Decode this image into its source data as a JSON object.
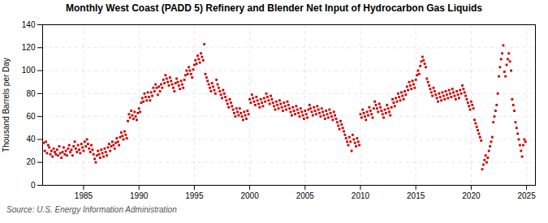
{
  "chart_data": {
    "type": "scatter",
    "title": "Monthly West Coast (PADD 5) Refinery and Blender Net Input of Hydrocarbon Gas Liquids",
    "ylabel": "Thousand Barrels per Day",
    "source": "Source: U.S. Energy Information Administration",
    "color": "#cc0000",
    "marker": "square",
    "grid": true,
    "xlim": [
      1981.3,
      2025.8
    ],
    "xticks": [
      1985,
      1990,
      1995,
      2000,
      2005,
      2010,
      2015,
      2020,
      2025
    ],
    "ylim": [
      0,
      140
    ],
    "yticks": [
      0,
      20,
      40,
      60,
      80,
      100,
      120,
      140
    ],
    "x": [
      1981.4,
      1981.5,
      1981.6,
      1981.7,
      1981.8,
      1981.9,
      1982.0,
      1982.1,
      1982.2,
      1982.3,
      1982.4,
      1982.5,
      1982.6,
      1982.7,
      1982.8,
      1982.9,
      1983.0,
      1983.1,
      1983.2,
      1983.3,
      1983.4,
      1983.5,
      1983.6,
      1983.7,
      1983.8,
      1983.9,
      1984.0,
      1984.1,
      1984.2,
      1984.3,
      1984.4,
      1984.5,
      1984.6,
      1984.7,
      1984.8,
      1984.9,
      1985.0,
      1985.1,
      1985.2,
      1985.3,
      1985.4,
      1985.5,
      1985.6,
      1985.7,
      1985.8,
      1985.9,
      1986.0,
      1986.1,
      1986.2,
      1986.3,
      1986.4,
      1986.5,
      1986.6,
      1986.7,
      1986.8,
      1986.9,
      1987.0,
      1987.1,
      1987.2,
      1987.3,
      1987.4,
      1987.5,
      1987.6,
      1987.7,
      1987.8,
      1987.9,
      1988.0,
      1988.1,
      1988.2,
      1988.3,
      1988.4,
      1988.5,
      1988.6,
      1988.7,
      1988.8,
      1988.9,
      1989.0,
      1989.1,
      1989.2,
      1989.3,
      1989.4,
      1989.5,
      1989.6,
      1989.7,
      1989.8,
      1989.9,
      1990.0,
      1990.1,
      1990.2,
      1990.3,
      1990.4,
      1990.5,
      1990.6,
      1990.7,
      1990.8,
      1990.9,
      1991.0,
      1991.1,
      1991.2,
      1991.3,
      1991.4,
      1991.5,
      1991.6,
      1991.7,
      1991.8,
      1991.9,
      1992.0,
      1992.1,
      1992.2,
      1992.3,
      1992.4,
      1992.5,
      1992.6,
      1992.7,
      1992.8,
      1992.9,
      1993.0,
      1993.1,
      1993.2,
      1993.3,
      1993.4,
      1993.5,
      1993.6,
      1993.7,
      1993.8,
      1993.9,
      1994.0,
      1994.1,
      1994.2,
      1994.3,
      1994.4,
      1994.5,
      1994.6,
      1994.7,
      1994.8,
      1994.9,
      1995.0,
      1995.1,
      1995.2,
      1995.3,
      1995.4,
      1995.5,
      1995.6,
      1995.7,
      1995.8,
      1995.9,
      1996.0,
      1996.1,
      1996.2,
      1996.3,
      1996.4,
      1996.5,
      1996.6,
      1996.7,
      1996.8,
      1996.9,
      1997.0,
      1997.1,
      1997.2,
      1997.3,
      1997.4,
      1997.5,
      1997.6,
      1997.7,
      1997.8,
      1997.9,
      1998.0,
      1998.1,
      1998.2,
      1998.3,
      1998.4,
      1998.5,
      1998.6,
      1998.7,
      1998.8,
      1998.9,
      1999.0,
      1999.1,
      1999.2,
      1999.3,
      1999.4,
      1999.5,
      1999.6,
      1999.7,
      1999.8,
      1999.9,
      2000.0,
      2000.1,
      2000.2,
      2000.3,
      2000.4,
      2000.5,
      2000.6,
      2000.7,
      2000.8,
      2000.9,
      2001.0,
      2001.1,
      2001.2,
      2001.3,
      2001.4,
      2001.5,
      2001.6,
      2001.7,
      2001.8,
      2001.9,
      2002.0,
      2002.1,
      2002.2,
      2002.3,
      2002.4,
      2002.5,
      2002.6,
      2002.7,
      2002.8,
      2002.9,
      2003.0,
      2003.1,
      2003.2,
      2003.3,
      2003.4,
      2003.5,
      2003.6,
      2003.7,
      2003.8,
      2003.9,
      2004.0,
      2004.1,
      2004.2,
      2004.3,
      2004.4,
      2004.5,
      2004.6,
      2004.7,
      2004.8,
      2004.9,
      2005.0,
      2005.1,
      2005.2,
      2005.3,
      2005.4,
      2005.5,
      2005.6,
      2005.7,
      2005.8,
      2005.9,
      2006.0,
      2006.1,
      2006.2,
      2006.3,
      2006.4,
      2006.5,
      2006.6,
      2006.7,
      2006.8,
      2006.9,
      2007.0,
      2007.1,
      2007.2,
      2007.3,
      2007.4,
      2007.5,
      2007.6,
      2007.7,
      2007.8,
      2007.9,
      2008.0,
      2008.1,
      2008.2,
      2008.3,
      2008.4,
      2008.5,
      2008.6,
      2008.7,
      2008.8,
      2008.9,
      2009.0,
      2009.1,
      2009.2,
      2009.3,
      2009.4,
      2009.5,
      2009.6,
      2009.7,
      2009.8,
      2009.9,
      2010.0,
      2010.1,
      2010.2,
      2010.3,
      2010.4,
      2010.5,
      2010.6,
      2010.7,
      2010.8,
      2010.9,
      2011.0,
      2011.1,
      2011.2,
      2011.3,
      2011.4,
      2011.5,
      2011.6,
      2011.7,
      2011.8,
      2011.9,
      2012.0,
      2012.1,
      2012.2,
      2012.3,
      2012.4,
      2012.5,
      2012.6,
      2012.7,
      2012.8,
      2012.9,
      2013.0,
      2013.1,
      2013.2,
      2013.3,
      2013.4,
      2013.5,
      2013.6,
      2013.7,
      2013.8,
      2013.9,
      2014.0,
      2014.1,
      2014.2,
      2014.3,
      2014.4,
      2014.5,
      2014.6,
      2014.7,
      2014.8,
      2014.9,
      2015.0,
      2015.1,
      2015.2,
      2015.3,
      2015.4,
      2015.5,
      2015.6,
      2015.7,
      2015.8,
      2015.9,
      2016.0,
      2016.1,
      2016.2,
      2016.3,
      2016.4,
      2016.5,
      2016.6,
      2016.7,
      2016.8,
      2016.9,
      2017.0,
      2017.1,
      2017.2,
      2017.3,
      2017.4,
      2017.5,
      2017.6,
      2017.7,
      2017.8,
      2017.9,
      2018.0,
      2018.1,
      2018.2,
      2018.3,
      2018.4,
      2018.5,
      2018.6,
      2018.7,
      2018.8,
      2018.9,
      2019.0,
      2019.1,
      2019.2,
      2019.3,
      2019.4,
      2019.5,
      2019.6,
      2019.7,
      2019.8,
      2019.9,
      2020.0,
      2020.1,
      2020.2,
      2020.3,
      2020.4,
      2020.5,
      2020.6,
      2020.7,
      2020.8,
      2020.9,
      2021.0,
      2021.1,
      2021.2,
      2021.3,
      2021.4,
      2021.5,
      2021.6,
      2021.7,
      2021.8,
      2021.9,
      2022.0,
      2022.1,
      2022.2,
      2022.3,
      2022.4,
      2022.5,
      2022.6,
      2022.7,
      2022.8,
      2022.9,
      2023.0,
      2023.1,
      2023.2,
      2023.3,
      2023.4,
      2023.5,
      2023.6,
      2023.7,
      2023.8,
      2023.9,
      2024.0,
      2024.1,
      2024.2,
      2024.3,
      2024.4,
      2024.5,
      2024.6,
      2024.7,
      2024.8,
      2024.9
    ],
    "values": [
      37,
      30,
      38,
      28,
      35,
      33,
      27,
      30,
      25,
      32,
      29,
      27,
      31,
      26,
      34,
      28,
      24,
      29,
      33,
      27,
      30,
      26,
      32,
      35,
      29,
      31,
      26,
      34,
      38,
      32,
      29,
      35,
      31,
      28,
      36,
      33,
      30,
      38,
      34,
      40,
      36,
      32,
      29,
      35,
      31,
      27,
      23,
      20,
      26,
      30,
      27,
      24,
      31,
      28,
      25,
      32,
      29,
      26,
      33,
      36,
      30,
      34,
      38,
      35,
      32,
      37,
      41,
      38,
      35,
      42,
      46,
      43,
      40,
      47,
      44,
      41,
      56,
      62,
      59,
      65,
      61,
      58,
      64,
      60,
      57,
      63,
      67,
      64,
      72,
      76,
      73,
      80,
      77,
      74,
      81,
      77,
      74,
      81,
      78,
      85,
      82,
      88,
      85,
      79,
      86,
      82,
      88,
      85,
      92,
      89,
      96,
      93,
      90,
      87,
      94,
      91,
      88,
      85,
      82,
      89,
      93,
      90,
      87,
      84,
      91,
      88,
      85,
      92,
      96,
      100,
      97,
      103,
      100,
      97,
      94,
      101,
      105,
      109,
      106,
      113,
      110,
      107,
      115,
      112,
      109,
      123,
      97,
      94,
      91,
      88,
      85,
      82,
      89,
      86,
      83,
      80,
      92,
      88,
      85,
      82,
      79,
      76,
      83,
      80,
      77,
      74,
      71,
      68,
      75,
      72,
      69,
      66,
      63,
      60,
      67,
      64,
      61,
      67,
      63,
      60,
      57,
      64,
      61,
      58,
      65,
      62,
      75,
      72,
      79,
      76,
      73,
      70,
      77,
      74,
      71,
      68,
      75,
      72,
      69,
      76,
      73,
      80,
      77,
      74,
      71,
      78,
      75,
      72,
      69,
      66,
      73,
      70,
      67,
      74,
      71,
      68,
      65,
      72,
      69,
      66,
      73,
      70,
      67,
      64,
      61,
      68,
      65,
      62,
      69,
      66,
      63,
      60,
      67,
      64,
      61,
      58,
      65,
      62,
      59,
      66,
      70,
      67,
      64,
      61,
      68,
      65,
      62,
      69,
      66,
      63,
      60,
      67,
      64,
      61,
      58,
      65,
      62,
      59,
      66,
      63,
      60,
      57,
      64,
      61,
      58,
      55,
      52,
      49,
      56,
      53,
      50,
      47,
      44,
      41,
      38,
      35,
      42,
      38,
      30,
      44,
      40,
      37,
      34,
      41,
      38,
      35,
      62,
      59,
      66,
      63,
      60,
      57,
      64,
      61,
      68,
      65,
      62,
      59,
      67,
      73,
      70,
      67,
      64,
      71,
      68,
      65,
      62,
      59,
      66,
      63,
      70,
      67,
      64,
      61,
      68,
      75,
      72,
      69,
      76,
      73,
      80,
      77,
      74,
      81,
      78,
      75,
      82,
      79,
      86,
      83,
      90,
      87,
      84,
      91,
      88,
      85,
      92,
      96,
      100,
      97,
      104,
      108,
      112,
      109,
      106,
      103,
      93,
      90,
      87,
      84,
      81,
      78,
      85,
      82,
      79,
      76,
      73,
      80,
      77,
      74,
      81,
      78,
      75,
      82,
      79,
      76,
      83,
      80,
      77,
      84,
      81,
      78,
      75,
      82,
      79,
      76,
      83,
      80,
      87,
      84,
      81,
      78,
      75,
      72,
      69,
      66,
      73,
      70,
      67,
      57,
      54,
      51,
      48,
      45,
      42,
      39,
      14,
      18,
      22,
      26,
      20,
      24,
      30,
      34,
      38,
      42,
      55,
      60,
      65,
      70,
      80,
      95,
      103,
      110,
      115,
      122,
      99,
      95,
      105,
      110,
      115,
      108,
      100,
      75,
      70,
      65,
      55,
      50,
      45,
      40,
      35,
      30,
      25,
      35,
      40,
      38
    ]
  }
}
